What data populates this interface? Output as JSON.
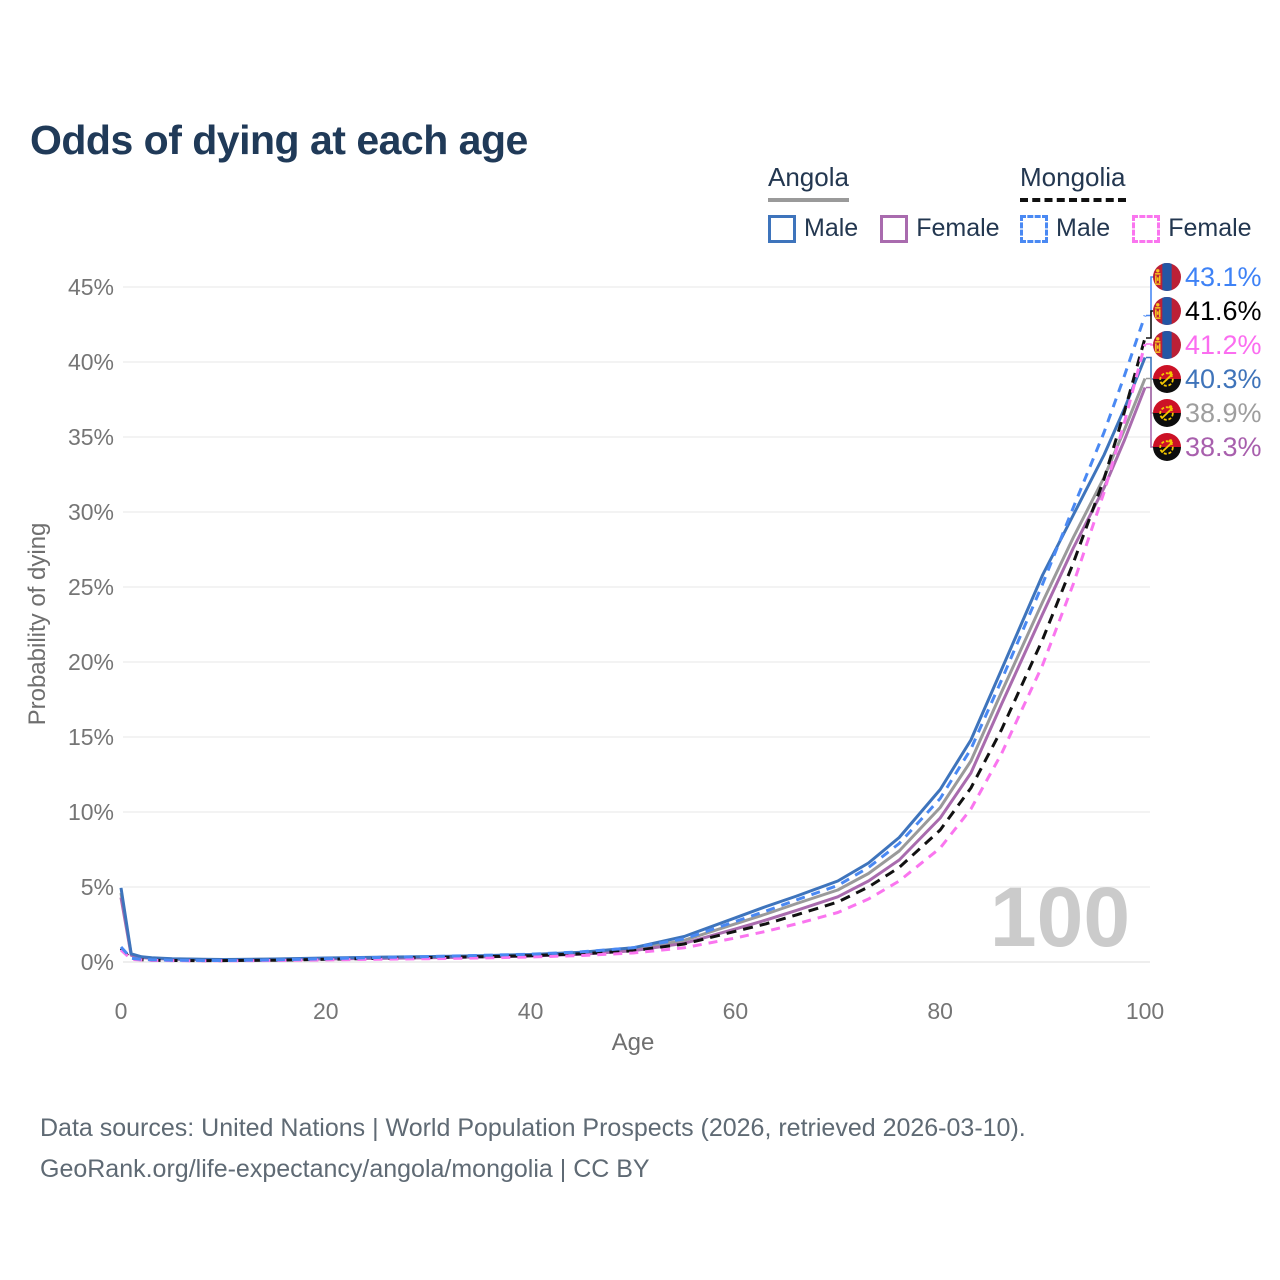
{
  "title": "Odds of dying at each age",
  "watermark": "100",
  "footer": {
    "line1": "Data sources: United Nations | World Population Prospects (2026, retrieved 2026-03-10).",
    "line2": "GeoRank.org/life-expectancy/angola/mongolia | CC BY"
  },
  "legend": {
    "groups": [
      {
        "label": "Angola",
        "line": {
          "color": "#9a9a9a",
          "style": "solid"
        },
        "items": [
          {
            "label": "Male",
            "color": "#3e74bc",
            "style": "solid"
          },
          {
            "label": "Female",
            "color": "#a96bae",
            "style": "solid"
          }
        ]
      },
      {
        "label": "Mongolia",
        "line": {
          "color": "#111111",
          "style": "dashed"
        },
        "items": [
          {
            "label": "Male",
            "color": "#4a89f3",
            "style": "dashed"
          },
          {
            "label": "Female",
            "color": "#fa75ef",
            "style": "dashed"
          }
        ]
      }
    ]
  },
  "chart_data": {
    "type": "line",
    "title": "Odds of dying at each age",
    "xlabel": "Age",
    "ylabel": "Probability of dying",
    "xlim": [
      0,
      100
    ],
    "ylim": [
      0,
      45
    ],
    "xticks": [
      0,
      20,
      40,
      60,
      80,
      100
    ],
    "yticks": [
      0,
      5,
      10,
      15,
      20,
      25,
      30,
      35,
      40,
      45
    ],
    "ytick_suffix": "%",
    "grid": "horizontal",
    "legend_position": "top-right",
    "x": [
      0,
      1,
      2,
      3,
      5,
      8,
      10,
      15,
      20,
      25,
      30,
      35,
      40,
      45,
      50,
      55,
      60,
      63,
      66,
      70,
      73,
      76,
      80,
      83,
      86,
      90,
      93,
      96,
      98,
      100
    ],
    "series": [
      {
        "id": "angola-all",
        "name": "Angola",
        "country": "angola",
        "flag": "angola",
        "color": "#9a9a9a",
        "dash": null,
        "end_value": 38.9,
        "end_label": "38.9%",
        "label_color": "#9e9e9e",
        "values": [
          4.6,
          0.5,
          0.33,
          0.26,
          0.2,
          0.17,
          0.16,
          0.18,
          0.24,
          0.28,
          0.32,
          0.38,
          0.46,
          0.6,
          0.85,
          1.45,
          2.55,
          3.2,
          3.9,
          4.8,
          5.9,
          7.4,
          10.3,
          13.4,
          18.0,
          24.0,
          28.3,
          32.3,
          35.5,
          38.9
        ]
      },
      {
        "id": "angola-female",
        "name": "Angola Female",
        "country": "angola",
        "flag": "angola",
        "color": "#a96bae",
        "dash": null,
        "end_value": 38.3,
        "end_label": "38.3%",
        "label_color": "#a85fad",
        "values": [
          4.3,
          0.45,
          0.3,
          0.24,
          0.18,
          0.15,
          0.14,
          0.16,
          0.2,
          0.24,
          0.28,
          0.33,
          0.4,
          0.52,
          0.75,
          1.25,
          2.2,
          2.8,
          3.45,
          4.35,
          5.4,
          6.8,
          9.6,
          12.6,
          17.2,
          23.2,
          27.6,
          31.6,
          34.8,
          38.3
        ]
      },
      {
        "id": "angola-male",
        "name": "Angola Male",
        "country": "angola",
        "flag": "angola",
        "color": "#3e74bc",
        "dash": null,
        "end_value": 40.3,
        "end_label": "40.3%",
        "label_color": "#3f74ba",
        "values": [
          4.95,
          0.55,
          0.35,
          0.28,
          0.22,
          0.18,
          0.17,
          0.2,
          0.27,
          0.32,
          0.36,
          0.42,
          0.5,
          0.65,
          0.95,
          1.7,
          2.95,
          3.7,
          4.4,
          5.4,
          6.6,
          8.3,
          11.5,
          14.8,
          19.5,
          25.8,
          29.8,
          33.8,
          36.9,
          40.3
        ]
      },
      {
        "id": "mongolia-all",
        "name": "Mongolia",
        "country": "mongolia",
        "flag": "mongolia",
        "color": "#111111",
        "dash": "10 7",
        "end_value": 41.6,
        "end_label": "41.6%",
        "label_color": "#000000",
        "values": [
          0.9,
          0.2,
          0.15,
          0.12,
          0.1,
          0.09,
          0.09,
          0.12,
          0.18,
          0.24,
          0.29,
          0.35,
          0.42,
          0.55,
          0.75,
          1.2,
          2.05,
          2.55,
          3.15,
          4.0,
          5.0,
          6.3,
          8.8,
          11.6,
          15.5,
          21.5,
          26.6,
          32.2,
          36.7,
          41.6
        ]
      },
      {
        "id": "mongolia-female",
        "name": "Mongolia Female",
        "country": "mongolia",
        "flag": "mongolia",
        "color": "#fa75ef",
        "dash": "9 7",
        "end_value": 41.2,
        "end_label": "41.2%",
        "label_color": "#fb6df0",
        "values": [
          0.8,
          0.18,
          0.13,
          0.11,
          0.09,
          0.08,
          0.08,
          0.1,
          0.14,
          0.18,
          0.22,
          0.27,
          0.33,
          0.43,
          0.6,
          0.95,
          1.6,
          2.05,
          2.55,
          3.3,
          4.2,
          5.4,
          7.6,
          10.2,
          13.9,
          19.8,
          25.2,
          31.3,
          36.0,
          41.2
        ]
      },
      {
        "id": "mongolia-male",
        "name": "Mongolia Male",
        "country": "mongolia",
        "flag": "mongolia",
        "color": "#4a89f3",
        "dash": "9 7",
        "end_value": 43.1,
        "end_label": "43.1%",
        "label_color": "#3e82f6",
        "values": [
          1.0,
          0.25,
          0.18,
          0.15,
          0.12,
          0.1,
          0.1,
          0.14,
          0.22,
          0.3,
          0.36,
          0.44,
          0.52,
          0.68,
          0.95,
          1.55,
          2.7,
          3.4,
          4.15,
          5.1,
          6.3,
          7.9,
          10.9,
          14.2,
          18.8,
          25.2,
          30.3,
          35.3,
          39.1,
          43.1
        ]
      }
    ]
  }
}
